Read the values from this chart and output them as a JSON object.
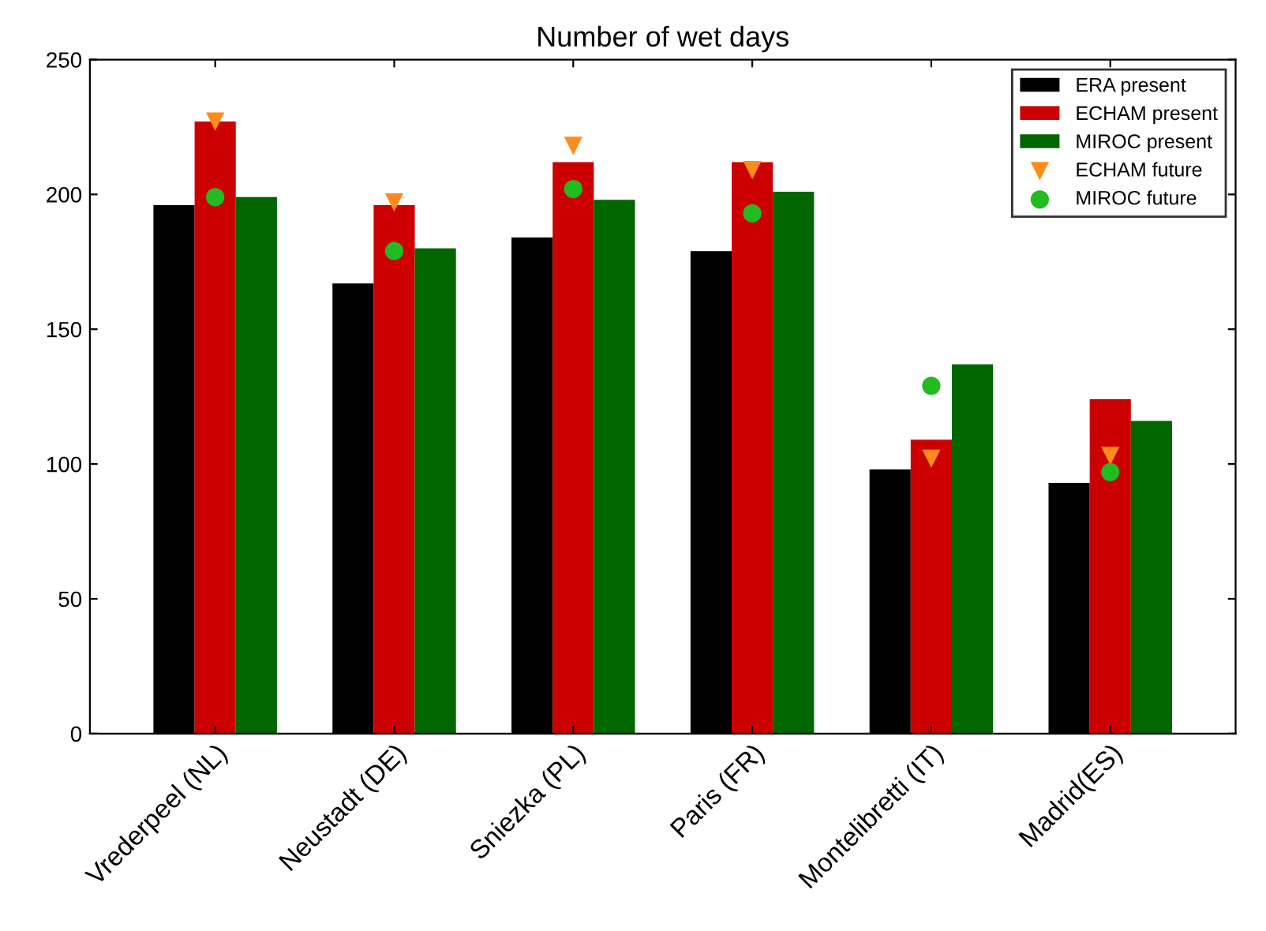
{
  "chart_data": {
    "type": "bar",
    "title": "Number of wet days",
    "categories": [
      "Vrederpeel (NL)",
      "Neustadt (DE)",
      "Sniezka (PL)",
      "Paris (FR)",
      "Montelibretti (IT)",
      "Madrid(ES)"
    ],
    "series": [
      {
        "name": "ERA present",
        "color": "#000000",
        "values": [
          196,
          167,
          184,
          179,
          98,
          93
        ]
      },
      {
        "name": "ECHAM present",
        "color": "#cc0000",
        "values": [
          227,
          196,
          212,
          212,
          109,
          124
        ]
      },
      {
        "name": "MIROC present",
        "color": "#006600",
        "values": [
          199,
          180,
          198,
          201,
          137,
          116
        ]
      },
      {
        "name": "ECHAM future",
        "type": "scatter",
        "marker": "triangle",
        "color": "#ff8c1a",
        "values": [
          227,
          197,
          218,
          209,
          102,
          103
        ]
      },
      {
        "name": "MIROC future",
        "type": "scatter",
        "marker": "circle",
        "color": "#22bb22",
        "values": [
          199,
          179,
          202,
          193,
          129,
          97
        ]
      }
    ],
    "ylim": [
      0,
      250
    ],
    "yticks": [
      0,
      50,
      100,
      150,
      200,
      250
    ],
    "grid": false,
    "legend": "top right"
  }
}
